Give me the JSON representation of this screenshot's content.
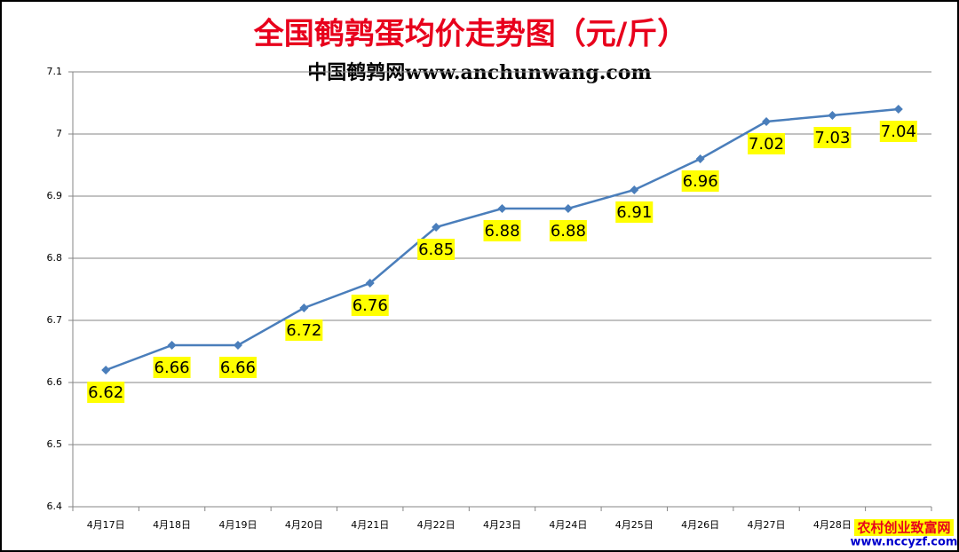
{
  "chart_data": {
    "type": "line",
    "title": "全国鹌鹑蛋均价走势图（元/斤）",
    "subtitle": "中国鹌鹑网www.anchunwang.com",
    "categories": [
      "4月17日",
      "4月18日",
      "4月19日",
      "4月20日",
      "4月21日",
      "4月22日",
      "4月23日",
      "4月24日",
      "4月25日",
      "4月26日",
      "4月27日",
      "4月28日",
      null
    ],
    "values": [
      6.62,
      6.66,
      6.66,
      6.72,
      6.76,
      6.85,
      6.88,
      6.88,
      6.91,
      6.96,
      7.02,
      7.03,
      7.04
    ],
    "color": "#4a7ebb",
    "label_background": "#ffff00",
    "ylim": [
      6.4,
      7.1
    ],
    "yticks": [
      6.4,
      6.5,
      6.6,
      6.7,
      6.8,
      6.9,
      7,
      7.1
    ],
    "grid": true
  },
  "watermark": {
    "name": "农村创业致富网",
    "url": "www.nccyzf.com"
  }
}
